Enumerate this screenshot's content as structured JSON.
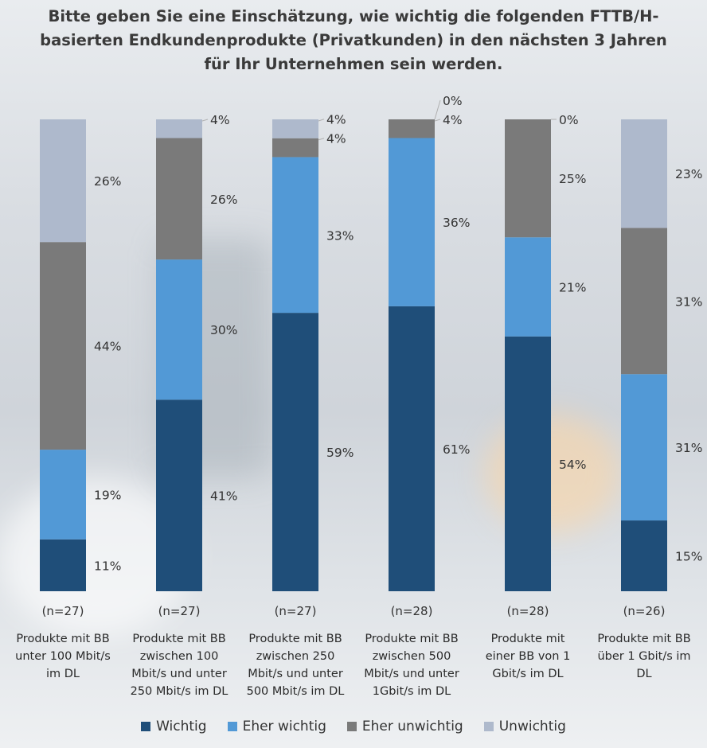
{
  "title": "Bitte geben Sie eine Einschätzung, wie wichtig die folgenden FTTB/H-basierten Endkundenprodukte (Privatkunden) in den nächsten 3 Jahren für Ihr Unternehmen sein werden.",
  "chart_data": {
    "type": "bar",
    "stacked": true,
    "percent_stacked": true,
    "categories": [
      "Produkte mit BB unter 100 Mbit/s im DL",
      "Produkte mit BB zwischen 100 Mbit/s und unter 250 Mbit/s im DL",
      "Produkte mit BB zwischen 250 Mbit/s und unter 500 Mbit/s im DL",
      "Produkte mit BB zwischen 500 Mbit/s und unter 1Gbit/s im DL",
      "Produkte mit einer BB von 1 Gbit/s im DL",
      "Produkte mit BB über 1 Gbit/s im DL"
    ],
    "category_lines": [
      [
        "Produkte mit BB",
        "unter 100 Mbit/s",
        "im DL"
      ],
      [
        "Produkte mit BB",
        "zwischen 100",
        "Mbit/s und unter",
        "250 Mbit/s im DL"
      ],
      [
        "Produkte mit BB",
        "zwischen 250",
        "Mbit/s und unter",
        "500 Mbit/s im DL"
      ],
      [
        "Produkte mit BB",
        "zwischen 500",
        "Mbit/s und unter",
        "1Gbit/s im DL"
      ],
      [
        "Produkte mit",
        "einer BB von 1",
        "Gbit/s im DL"
      ],
      [
        "Produkte mit BB",
        "über 1 Gbit/s im",
        "DL"
      ]
    ],
    "sample_sizes": [
      "(n=27)",
      "(n=27)",
      "(n=27)",
      "(n=28)",
      "(n=28)",
      "(n=26)"
    ],
    "series": [
      {
        "name": "Wichtig",
        "color": "#1f4e79",
        "values": [
          11,
          41,
          59,
          61,
          54,
          15
        ]
      },
      {
        "name": "Eher wichtig",
        "color": "#5299d6",
        "values": [
          19,
          30,
          33,
          36,
          21,
          31
        ]
      },
      {
        "name": "Eher unwichtig",
        "color": "#7a7a7a",
        "values": [
          44,
          26,
          4,
          4,
          25,
          31
        ]
      },
      {
        "name": "Unwichtig",
        "color": "#aeb9cc",
        "values": [
          26,
          4,
          4,
          0,
          0,
          23
        ]
      }
    ],
    "value_suffix": "%",
    "legend_position": "bottom",
    "grid": false
  }
}
